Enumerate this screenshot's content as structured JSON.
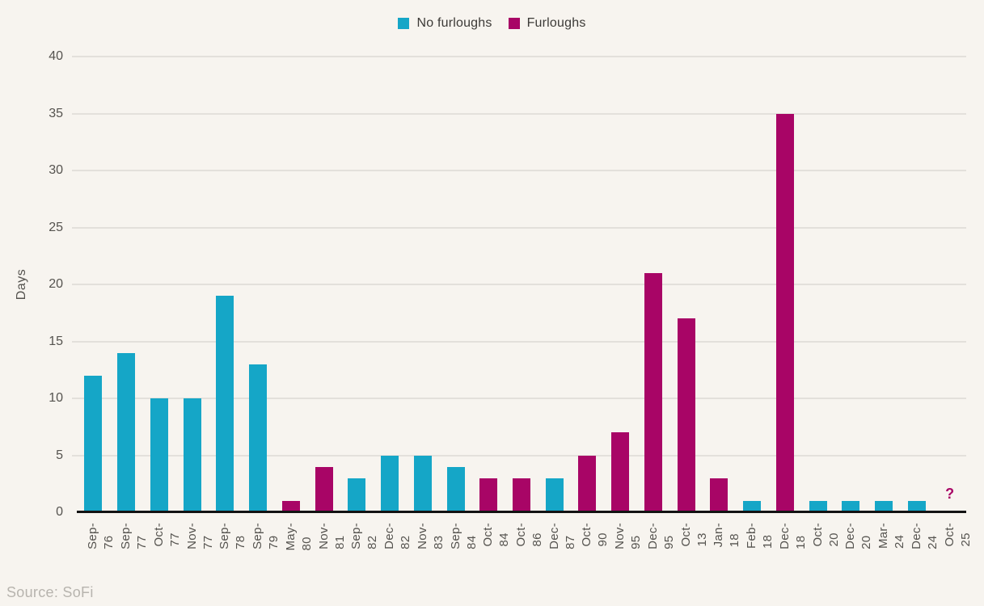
{
  "footer": {
    "source": "Source: SoFi"
  },
  "colors": {
    "background": "#F7F4EF",
    "gridline": "#E3E0DB",
    "axis_line": "#131313",
    "tick_text": "#55534F",
    "legend_text": "#3C3A37",
    "source_text": "#B7B4AE",
    "no_furloughs": "#15A6C7",
    "furloughs": "#A80566"
  },
  "chart_data": {
    "type": "bar",
    "title": "",
    "xlabel": "",
    "ylabel": "Days",
    "ylim": [
      0,
      40
    ],
    "yticks": [
      0,
      5,
      10,
      15,
      20,
      25,
      30,
      35,
      40
    ],
    "grid": "horizontal",
    "legend_position": "top-center",
    "legend": [
      {
        "name": "No furloughs",
        "color": "#15A6C7"
      },
      {
        "name": "Furloughs",
        "color": "#A80566"
      }
    ],
    "points": [
      {
        "label": "Sep-76",
        "value": 12,
        "series": "No furloughs"
      },
      {
        "label": "Sep-77",
        "value": 14,
        "series": "No furloughs"
      },
      {
        "label": "Oct-77",
        "value": 10,
        "series": "No furloughs"
      },
      {
        "label": "Nov-77",
        "value": 10,
        "series": "No furloughs"
      },
      {
        "label": "Sep-78",
        "value": 19,
        "series": "No furloughs"
      },
      {
        "label": "Sep-79",
        "value": 13,
        "series": "No furloughs"
      },
      {
        "label": "May-80",
        "value": 1,
        "series": "Furloughs"
      },
      {
        "label": "Nov-81",
        "value": 4,
        "series": "Furloughs"
      },
      {
        "label": "Sep-82",
        "value": 3,
        "series": "No furloughs"
      },
      {
        "label": "Dec-82",
        "value": 5,
        "series": "No furloughs"
      },
      {
        "label": "Nov-83",
        "value": 5,
        "series": "No furloughs"
      },
      {
        "label": "Sep-84",
        "value": 4,
        "series": "No furloughs"
      },
      {
        "label": "Oct-84",
        "value": 3,
        "series": "Furloughs"
      },
      {
        "label": "Oct-86",
        "value": 3,
        "series": "Furloughs"
      },
      {
        "label": "Dec-87",
        "value": 3,
        "series": "No furloughs"
      },
      {
        "label": "Oct-90",
        "value": 5,
        "series": "Furloughs"
      },
      {
        "label": "Nov-95",
        "value": 7,
        "series": "Furloughs"
      },
      {
        "label": "Dec-95",
        "value": 21,
        "series": "Furloughs"
      },
      {
        "label": "Oct-13",
        "value": 17,
        "series": "Furloughs"
      },
      {
        "label": "Jan-18",
        "value": 3,
        "series": "Furloughs"
      },
      {
        "label": "Feb-18",
        "value": 1,
        "series": "No furloughs"
      },
      {
        "label": "Dec-18",
        "value": 35,
        "series": "Furloughs"
      },
      {
        "label": "Oct-20",
        "value": 1,
        "series": "No furloughs"
      },
      {
        "label": "Dec-20",
        "value": 1,
        "series": "No furloughs"
      },
      {
        "label": "Mar-24",
        "value": 1,
        "series": "No furloughs"
      },
      {
        "label": "Dec-24",
        "value": 1,
        "series": "No furloughs"
      },
      {
        "label": "Oct-25",
        "value": null,
        "series": "Furloughs",
        "annotation": "?"
      }
    ]
  }
}
